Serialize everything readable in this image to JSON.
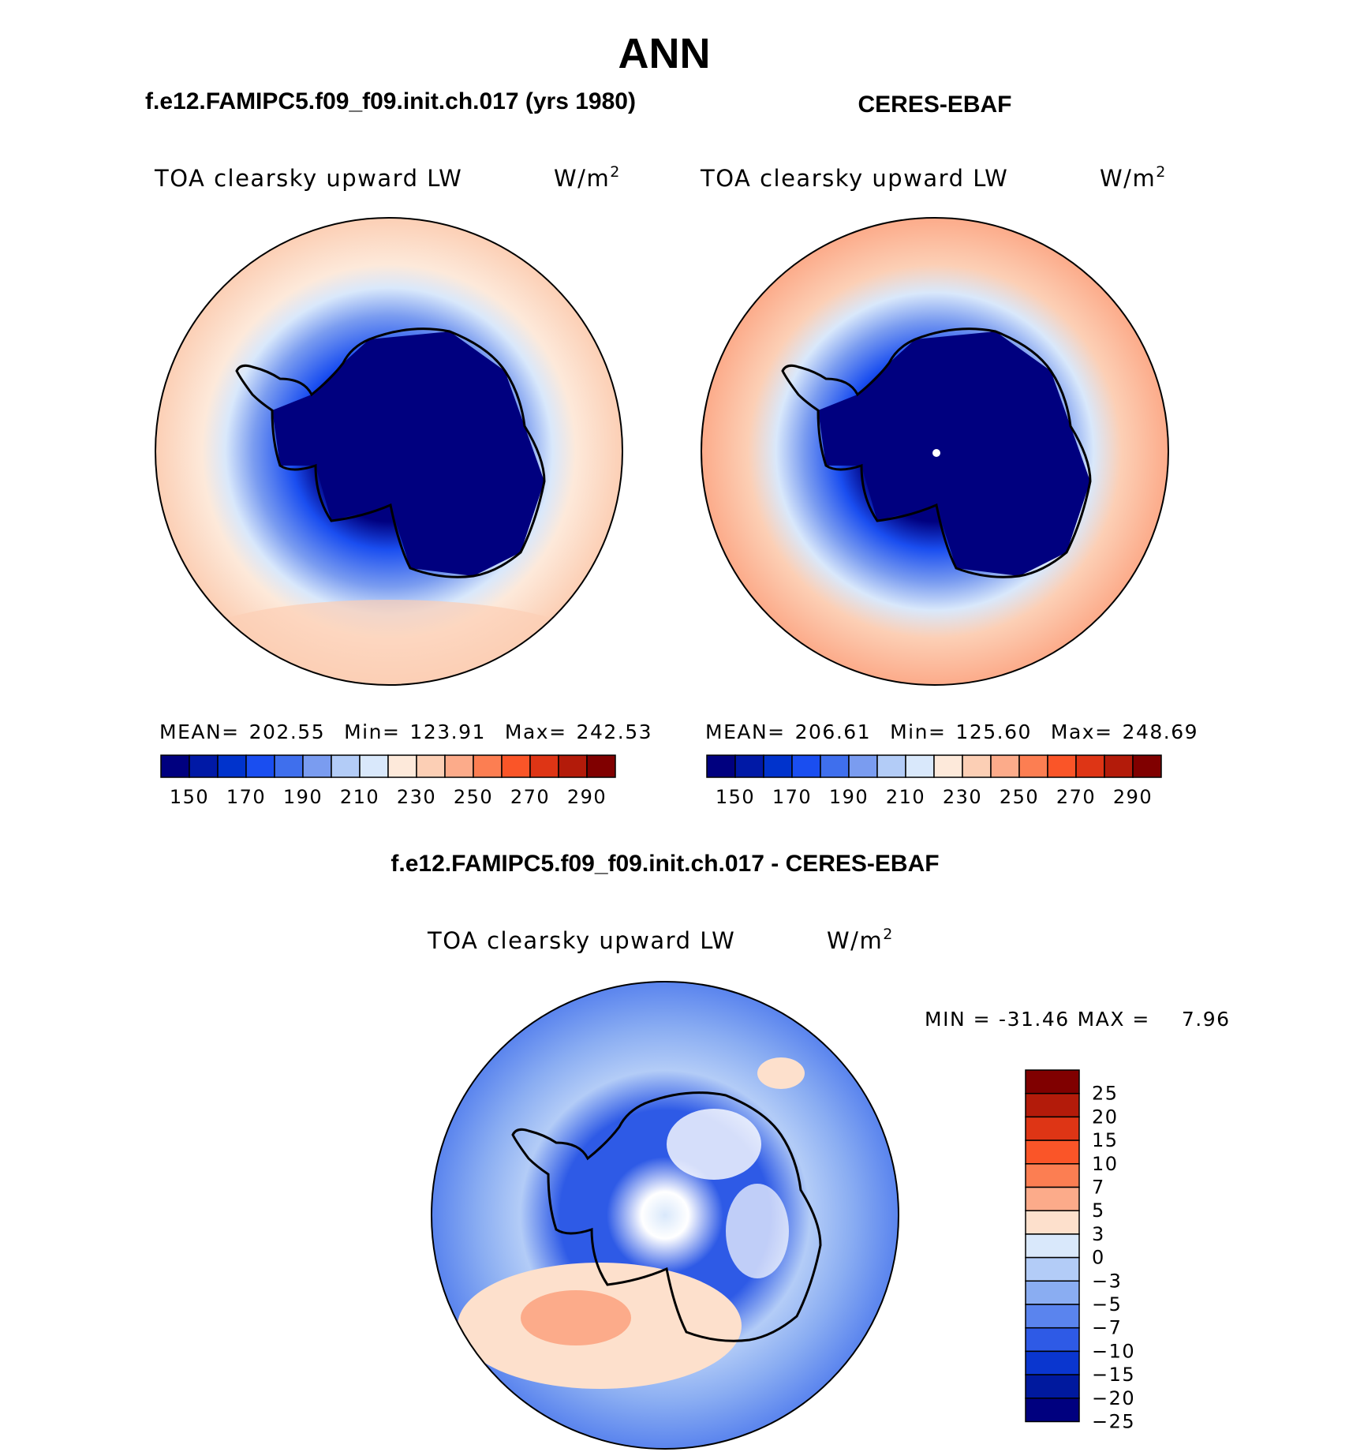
{
  "figure": {
    "season": "ANN",
    "panels": [
      {
        "id": "model",
        "heading": "f.e12.FAMIPC5.f09_f09.init.ch.017 (yrs 1980)",
        "variable": "TOA clearsky upward LW",
        "units": "W/m",
        "units_sup": "2",
        "mean_label": "MEAN=",
        "mean": "202.55",
        "min_label": "Min=",
        "min": "123.91",
        "max_label": "Max=",
        "max": "242.53"
      },
      {
        "id": "obs",
        "heading": "CERES-EBAF",
        "variable": "TOA clearsky upward LW",
        "units": "W/m",
        "units_sup": "2",
        "mean_label": "MEAN=",
        "mean": "206.61",
        "min_label": "Min=",
        "min": "125.60",
        "max_label": "Max=",
        "max": "248.69"
      },
      {
        "id": "diff",
        "heading": "f.e12.FAMIPC5.f09_f09.init.ch.017 - CERES-EBAF",
        "variable": "TOA clearsky upward LW",
        "units": "W/m",
        "units_sup": "2",
        "min_label": "MIN =",
        "min": "-31.46",
        "max_label": "MAX =",
        "max": "7.96"
      }
    ],
    "abs_colorbar": {
      "colors": [
        "#00007f",
        "#0019a6",
        "#0033cc",
        "#1a4ef0",
        "#3f6fed",
        "#7a9cf0",
        "#b3ccf7",
        "#d9e8fb",
        "#fde9da",
        "#fccfb5",
        "#fcab8a",
        "#fc7e52",
        "#fa5528",
        "#de3515",
        "#b31b0a",
        "#800000"
      ],
      "tick_labels": [
        "150",
        "170",
        "190",
        "210",
        "230",
        "250",
        "270",
        "290"
      ]
    },
    "diff_colorbar": {
      "colors": [
        "#800000",
        "#b31b0a",
        "#de3515",
        "#fa5528",
        "#fc7e52",
        "#fcab8a",
        "#fde0cc",
        "#d9e8fb",
        "#b3ccf7",
        "#8aadf2",
        "#5a84ee",
        "#2e5ae6",
        "#0a36cf",
        "#00199e",
        "#00007f"
      ],
      "tick_labels": [
        "25",
        "20",
        "15",
        "10",
        "7",
        "5",
        "3",
        "0",
        "−3",
        "−5",
        "−7",
        "−10",
        "−15",
        "−20",
        "−25"
      ]
    }
  }
}
